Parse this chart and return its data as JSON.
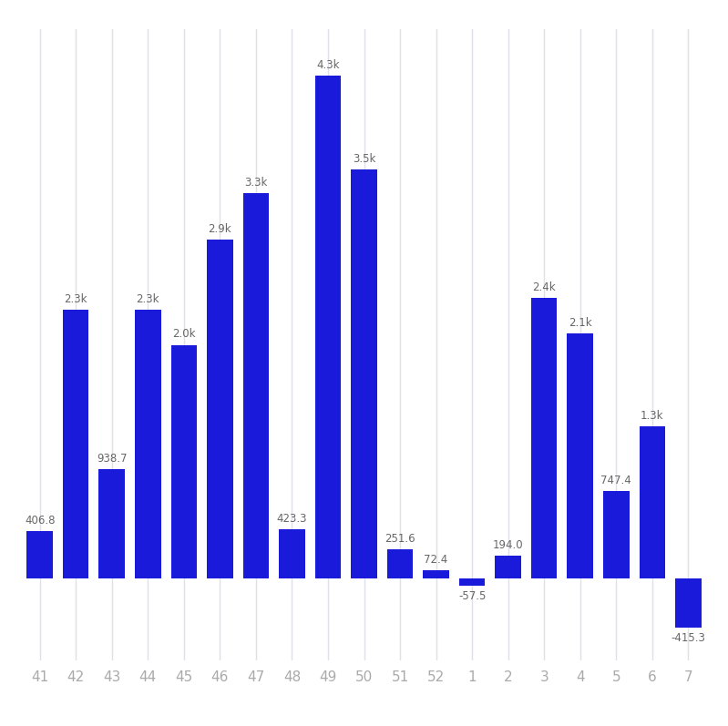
{
  "categories": [
    "41",
    "42",
    "43",
    "44",
    "45",
    "46",
    "47",
    "48",
    "49",
    "50",
    "51",
    "52",
    "1",
    "2",
    "3",
    "4",
    "5",
    "6",
    "7"
  ],
  "values": [
    406.8,
    2300,
    938.7,
    2300,
    2000,
    2900,
    3300,
    423.3,
    4300,
    3500,
    251.6,
    72.4,
    -57.5,
    194.0,
    2400,
    2100,
    747.4,
    1300,
    -415.3
  ],
  "labels": [
    "406.8",
    "2.3k",
    "938.7",
    "2.3k",
    "2.0k",
    "2.9k",
    "3.3k",
    "423.3",
    "4.3k",
    "3.5k",
    "251.6",
    "72.4",
    "-57.5",
    "194.0",
    "2.4k",
    "2.1k",
    "747.4",
    "1.3k",
    "-415.3"
  ],
  "bar_color": "#1a1adb",
  "background_color": "#ffffff",
  "grid_color": "#e0e0e8",
  "text_color": "#aaaaaa",
  "ylim_min": -700,
  "ylim_max": 4700
}
